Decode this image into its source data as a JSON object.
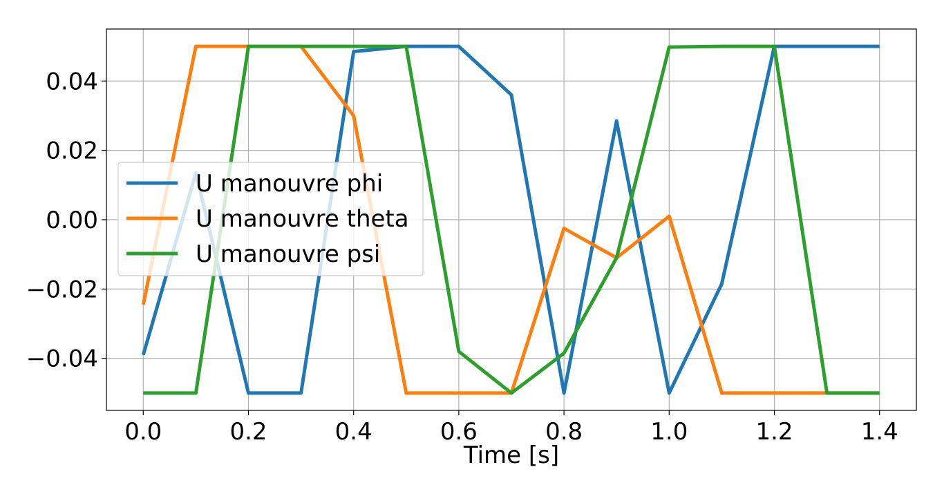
{
  "chart_data": {
    "type": "line",
    "xlabel": "Time [s]",
    "ylabel": "",
    "title": "",
    "xlim": [
      -0.07,
      1.47
    ],
    "ylim": [
      -0.055,
      0.055
    ],
    "xticks": [
      0.0,
      0.2,
      0.4,
      0.6,
      0.8,
      1.0,
      1.2,
      1.4
    ],
    "xtick_labels": [
      "0.0",
      "0.2",
      "0.4",
      "0.6",
      "0.8",
      "1.0",
      "1.2",
      "1.4"
    ],
    "yticks": [
      -0.04,
      -0.02,
      0.0,
      0.02,
      0.04
    ],
    "ytick_labels": [
      "−0.04",
      "−0.02",
      "0.00",
      "0.02",
      "0.04"
    ],
    "grid": true,
    "legend_position": "center-left",
    "x": [
      0.0,
      0.1,
      0.2,
      0.3,
      0.4,
      0.5,
      0.6,
      0.7,
      0.8,
      0.9,
      1.0,
      1.1,
      1.2,
      1.3,
      1.4
    ],
    "series": [
      {
        "name": "U manouvre phi",
        "color": "#1f77b4",
        "values": [
          -0.039,
          0.0135,
          -0.05,
          -0.05,
          0.0485,
          0.05,
          0.05,
          0.036,
          -0.05,
          0.0285,
          -0.05,
          -0.0185,
          0.05,
          0.05,
          0.05
        ]
      },
      {
        "name": "U manouvre theta",
        "color": "#ff7f0e",
        "values": [
          -0.0245,
          0.05,
          0.05,
          0.05,
          0.03,
          -0.05,
          -0.05,
          -0.05,
          -0.0025,
          -0.011,
          0.001,
          -0.05,
          -0.05,
          -0.05,
          -0.05
        ]
      },
      {
        "name": "U manouvre psi",
        "color": "#2ca02c",
        "values": [
          -0.05,
          -0.05,
          0.05,
          0.05,
          0.05,
          0.05,
          -0.038,
          -0.05,
          -0.0385,
          -0.011,
          0.0498,
          0.05,
          0.05,
          -0.05,
          -0.05
        ]
      }
    ]
  }
}
